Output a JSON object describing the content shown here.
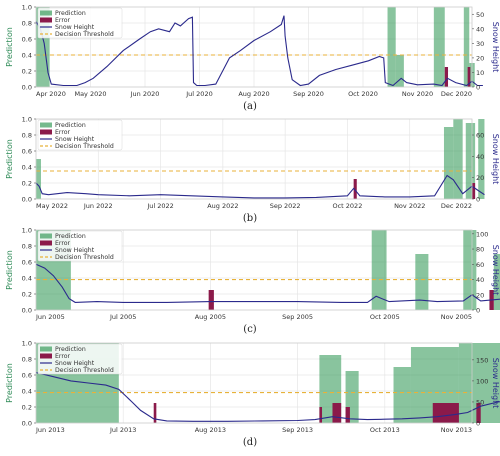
{
  "colors": {
    "prediction": "#3a9d5d",
    "error": "#8b1a4a",
    "snow": "#2b2a8c",
    "threshold": "#e8b23a",
    "grid": "#e6e6e6",
    "ylabel_left": "#2e8b57",
    "ylabel_right": "#2b2a8c"
  },
  "legend": {
    "prediction": "Prediction",
    "error": "Error",
    "snow": "Snow Height",
    "threshold": "Decision Threshold"
  },
  "chart_data": [
    {
      "type": "area",
      "caption": "(a)",
      "ylabel_left": "Prediction",
      "ylabel_right": "Snow Height",
      "xticks": [
        "Apr 2020",
        "May 2020",
        "Jun 2020",
        "Jul 2020",
        "Aug 2020",
        "Sep 2020",
        "Oct 2020",
        "Nov 2020",
        "Dec 2020"
      ],
      "yticks_left": [
        "0.0",
        "0.2",
        "0.4",
        "0.6",
        "0.8",
        "1.0"
      ],
      "yticks_right": [
        "0",
        "10",
        "20",
        "30",
        "40",
        "50"
      ],
      "ylim_left": [
        0,
        1.0
      ],
      "ylim_right": [
        0,
        55
      ],
      "threshold": 0.4,
      "prediction_bands": [
        [
          0.0,
          0.25,
          1.0
        ],
        [
          6.45,
          6.6,
          1.0
        ],
        [
          6.6,
          6.75,
          0.4
        ],
        [
          7.3,
          7.5,
          1.0
        ],
        [
          7.85,
          7.95,
          1.0
        ],
        [
          7.95,
          8.05,
          0.3
        ]
      ],
      "error_bars": [
        [
          7.5,
          7.56,
          0.25
        ],
        [
          7.92,
          7.97,
          0.25
        ]
      ],
      "snow": [
        [
          0.0,
          45
        ],
        [
          0.08,
          40
        ],
        [
          0.15,
          30
        ],
        [
          0.22,
          10
        ],
        [
          0.28,
          2
        ],
        [
          0.5,
          1
        ],
        [
          0.75,
          1
        ],
        [
          0.9,
          3
        ],
        [
          1.05,
          6
        ],
        [
          1.3,
          14
        ],
        [
          1.6,
          25
        ],
        [
          1.9,
          33
        ],
        [
          2.1,
          38
        ],
        [
          2.25,
          40
        ],
        [
          2.45,
          38
        ],
        [
          2.55,
          44
        ],
        [
          2.65,
          42
        ],
        [
          2.8,
          47
        ],
        [
          2.87,
          48
        ],
        [
          2.89,
          3
        ],
        [
          2.95,
          1
        ],
        [
          3.1,
          1
        ],
        [
          3.3,
          2
        ],
        [
          3.55,
          20
        ],
        [
          3.75,
          25
        ],
        [
          4.0,
          32
        ],
        [
          4.3,
          38
        ],
        [
          4.5,
          43
        ],
        [
          4.55,
          49
        ],
        [
          4.57,
          35
        ],
        [
          4.62,
          20
        ],
        [
          4.7,
          5
        ],
        [
          4.85,
          1
        ],
        [
          5.0,
          2
        ],
        [
          5.2,
          8
        ],
        [
          5.5,
          12
        ],
        [
          5.8,
          15
        ],
        [
          6.1,
          18
        ],
        [
          6.3,
          21
        ],
        [
          6.38,
          20
        ],
        [
          6.41,
          3
        ],
        [
          6.55,
          1
        ],
        [
          6.7,
          6
        ],
        [
          6.8,
          3
        ],
        [
          7.0,
          1.5
        ],
        [
          7.3,
          2
        ],
        [
          7.45,
          1
        ],
        [
          7.55,
          6
        ],
        [
          7.7,
          3
        ],
        [
          7.9,
          1
        ],
        [
          8.0,
          4
        ],
        [
          8.1,
          1
        ],
        [
          8.2,
          1
        ]
      ]
    },
    {
      "type": "area",
      "caption": "(b)",
      "ylabel_left": "Prediction",
      "ylabel_right": "Snow Height",
      "xticks": [
        "May 2022",
        "Jun 2022",
        "Jul 2022",
        "Aug 2022",
        "Sep 2022",
        "Oct 2022",
        "Nov 2022",
        "Dec 2022"
      ],
      "yticks_left": [
        "0.0",
        "0.2",
        "0.4",
        "0.6",
        "0.8",
        "1.0"
      ],
      "yticks_right": [
        "0",
        "20",
        "40",
        "60"
      ],
      "ylim_left": [
        0,
        1.0
      ],
      "ylim_right": [
        0,
        75
      ],
      "threshold": 0.35,
      "prediction_bands": [
        [
          0.0,
          0.08,
          0.5
        ],
        [
          6.55,
          6.7,
          0.9
        ],
        [
          6.7,
          6.85,
          1.0
        ],
        [
          6.9,
          7.05,
          0.95
        ],
        [
          7.1,
          7.2,
          1.0
        ]
      ],
      "error_bars": [
        [
          5.1,
          5.15,
          0.25
        ],
        [
          7.0,
          7.05,
          0.2
        ]
      ],
      "snow": [
        [
          0.0,
          15
        ],
        [
          0.05,
          12
        ],
        [
          0.1,
          5
        ],
        [
          0.2,
          4
        ],
        [
          0.5,
          6
        ],
        [
          0.8,
          5
        ],
        [
          1.0,
          4
        ],
        [
          1.5,
          3
        ],
        [
          2.0,
          4
        ],
        [
          2.5,
          3
        ],
        [
          3.0,
          2
        ],
        [
          3.5,
          1
        ],
        [
          4.0,
          1
        ],
        [
          4.5,
          1.5
        ],
        [
          5.0,
          3
        ],
        [
          5.1,
          10
        ],
        [
          5.2,
          3
        ],
        [
          5.6,
          2
        ],
        [
          6.0,
          2
        ],
        [
          6.4,
          3
        ],
        [
          6.6,
          22
        ],
        [
          6.7,
          18
        ],
        [
          6.85,
          5
        ],
        [
          7.0,
          12
        ],
        [
          7.1,
          8
        ],
        [
          7.2,
          4
        ]
      ]
    },
    {
      "type": "area",
      "caption": "(c)",
      "ylabel_left": "Prediction",
      "ylabel_right": "Snow Height",
      "xticks": [
        "Jun 2005",
        "Jul 2005",
        "Aug 2005",
        "Sep 2005",
        "Oct 2005",
        "Nov 2005"
      ],
      "yticks_left": [
        "0.0",
        "0.2",
        "0.4",
        "0.6",
        "0.8",
        "1.0"
      ],
      "yticks_right": [
        "0",
        "20",
        "40",
        "60",
        "80",
        "100"
      ],
      "ylim_left": [
        0,
        1.0
      ],
      "ylim_right": [
        0,
        105
      ],
      "threshold": 0.38,
      "prediction_bands": [
        [
          0.0,
          0.4,
          1.0
        ],
        [
          3.85,
          4.02,
          1.0
        ],
        [
          4.35,
          4.5,
          0.7
        ],
        [
          4.9,
          5.05,
          1.0
        ],
        [
          5.25,
          5.35,
          0.7
        ],
        [
          5.45,
          5.55,
          0.6
        ],
        [
          5.65,
          6.95,
          1.0
        ]
      ],
      "error_bars": [
        [
          1.98,
          2.04,
          0.25
        ],
        [
          5.2,
          5.25,
          0.25
        ],
        [
          5.5,
          5.54,
          0.2
        ],
        [
          5.7,
          5.75,
          0.2
        ]
      ],
      "snow": [
        [
          0.0,
          60
        ],
        [
          0.1,
          55
        ],
        [
          0.2,
          45
        ],
        [
          0.3,
          30
        ],
        [
          0.38,
          15
        ],
        [
          0.45,
          10
        ],
        [
          0.7,
          11
        ],
        [
          1.0,
          10
        ],
        [
          1.5,
          10
        ],
        [
          2.0,
          11
        ],
        [
          2.5,
          11
        ],
        [
          3.0,
          11
        ],
        [
          3.5,
          10
        ],
        [
          3.8,
          10
        ],
        [
          3.9,
          18
        ],
        [
          4.05,
          11
        ],
        [
          4.4,
          13
        ],
        [
          4.6,
          11
        ],
        [
          4.9,
          12
        ],
        [
          5.0,
          20
        ],
        [
          5.1,
          12
        ],
        [
          5.4,
          15
        ],
        [
          5.6,
          18
        ],
        [
          5.8,
          20
        ],
        [
          6.0,
          25
        ],
        [
          6.2,
          28
        ],
        [
          6.4,
          30
        ],
        [
          6.6,
          35
        ],
        [
          6.75,
          45
        ],
        [
          6.85,
          55
        ],
        [
          6.95,
          45
        ]
      ]
    },
    {
      "type": "area",
      "caption": "(d)",
      "ylabel_left": "Prediction",
      "ylabel_right": "Snow Height",
      "xticks": [
        "Jun 2013",
        "Jul 2013",
        "Aug 2013",
        "Sep 2013",
        "Oct 2013",
        "Nov 2013"
      ],
      "yticks_left": [
        "0.0",
        "0.2",
        "0.4",
        "0.6",
        "0.8",
        "1.0"
      ],
      "yticks_right": [
        "0",
        "50",
        "100",
        "150"
      ],
      "ylim_left": [
        0,
        1.0
      ],
      "ylim_right": [
        0,
        190
      ],
      "threshold": 0.38,
      "prediction_bands": [
        [
          0.0,
          0.95,
          1.0
        ],
        [
          3.25,
          3.5,
          0.85
        ],
        [
          3.55,
          3.7,
          0.65
        ],
        [
          4.1,
          4.3,
          0.7
        ],
        [
          4.3,
          4.85,
          0.95
        ],
        [
          4.85,
          6.9,
          1.0
        ]
      ],
      "error_bars": [
        [
          1.35,
          1.38,
          0.25
        ],
        [
          3.25,
          3.28,
          0.2
        ],
        [
          3.4,
          3.5,
          0.25
        ],
        [
          3.55,
          3.6,
          0.2
        ],
        [
          4.55,
          4.85,
          0.25
        ],
        [
          5.05,
          5.1,
          0.25
        ]
      ],
      "snow": [
        [
          0.0,
          120
        ],
        [
          0.2,
          110
        ],
        [
          0.4,
          100
        ],
        [
          0.6,
          95
        ],
        [
          0.8,
          90
        ],
        [
          0.95,
          80
        ],
        [
          1.1,
          50
        ],
        [
          1.2,
          30
        ],
        [
          1.35,
          10
        ],
        [
          1.5,
          5
        ],
        [
          1.8,
          4
        ],
        [
          2.2,
          4
        ],
        [
          2.6,
          5
        ],
        [
          3.0,
          6
        ],
        [
          3.2,
          8
        ],
        [
          3.4,
          15
        ],
        [
          3.6,
          10
        ],
        [
          3.8,
          8
        ],
        [
          4.0,
          9
        ],
        [
          4.2,
          10
        ],
        [
          4.4,
          12
        ],
        [
          4.6,
          15
        ],
        [
          4.8,
          20
        ],
        [
          4.95,
          25
        ],
        [
          5.1,
          40
        ],
        [
          5.3,
          50
        ],
        [
          5.6,
          58
        ],
        [
          6.0,
          62
        ],
        [
          6.4,
          65
        ],
        [
          6.7,
          70
        ],
        [
          6.9,
          68
        ]
      ]
    }
  ]
}
